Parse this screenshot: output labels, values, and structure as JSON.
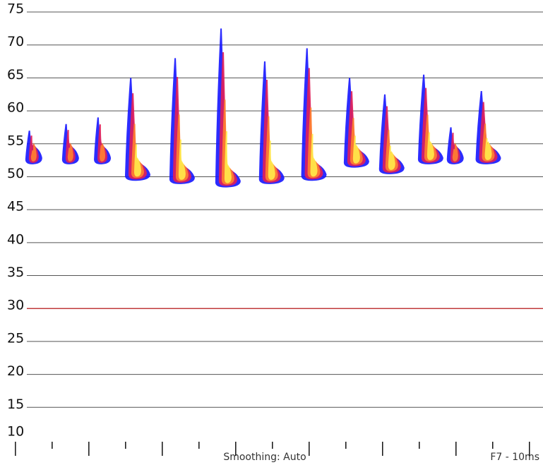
{
  "chart_data": {
    "type": "spectrogram",
    "ylim": [
      10,
      75
    ],
    "yticks": [
      10,
      15,
      20,
      25,
      30,
      35,
      40,
      45,
      50,
      55,
      60,
      65,
      70,
      75
    ],
    "xlim": [
      -0.42,
      14.37
    ],
    "xticks": [
      0,
      1,
      2,
      3,
      4,
      5,
      6,
      7,
      8,
      9,
      10,
      11,
      12,
      13,
      14
    ],
    "grid": true,
    "grid_color": "#555555",
    "reference_line": {
      "value": 30,
      "color": "#c0393b"
    },
    "pulses": [
      {
        "x": 0.5,
        "high": 57,
        "low": 52
      },
      {
        "x": 1.5,
        "high": 58,
        "low": 52
      },
      {
        "x": 2.37,
        "high": 59,
        "low": 52
      },
      {
        "x": 3.33,
        "high": 65,
        "low": 49.5
      },
      {
        "x": 4.54,
        "high": 68,
        "low": 49
      },
      {
        "x": 5.79,
        "high": 72.5,
        "low": 48.5
      },
      {
        "x": 6.98,
        "high": 67.5,
        "low": 49
      },
      {
        "x": 8.13,
        "high": 69.5,
        "low": 49.5
      },
      {
        "x": 9.29,
        "high": 65,
        "low": 51.5
      },
      {
        "x": 10.25,
        "high": 62.5,
        "low": 50.5
      },
      {
        "x": 11.31,
        "high": 65.5,
        "low": 52
      },
      {
        "x": 11.98,
        "high": 57.5,
        "low": 52
      },
      {
        "x": 12.88,
        "high": 63,
        "low": 52
      }
    ],
    "status_left": "Smoothing: Auto",
    "status_right": "F7 - 10ms"
  }
}
